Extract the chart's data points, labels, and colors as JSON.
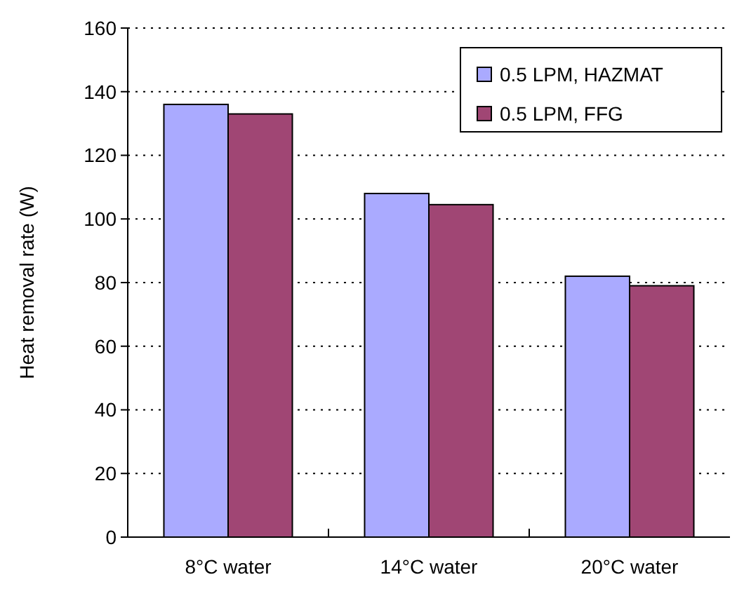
{
  "chart_data": {
    "type": "bar",
    "ylabel": "Heat removal rate (W)",
    "categories": [
      "8°C water",
      "14°C water",
      "20°C water"
    ],
    "series": [
      {
        "name": "0.5 LPM, HAZMAT",
        "color": "#aaaaff",
        "values": [
          136,
          108,
          82
        ]
      },
      {
        "name": "0.5 LPM, FFG",
        "color": "#a04674",
        "values": [
          133,
          104.5,
          79
        ]
      }
    ],
    "ylim": [
      0,
      160
    ],
    "yticks": [
      0,
      20,
      40,
      60,
      80,
      100,
      120,
      140,
      160
    ],
    "grid": "y",
    "legend": "top right"
  }
}
